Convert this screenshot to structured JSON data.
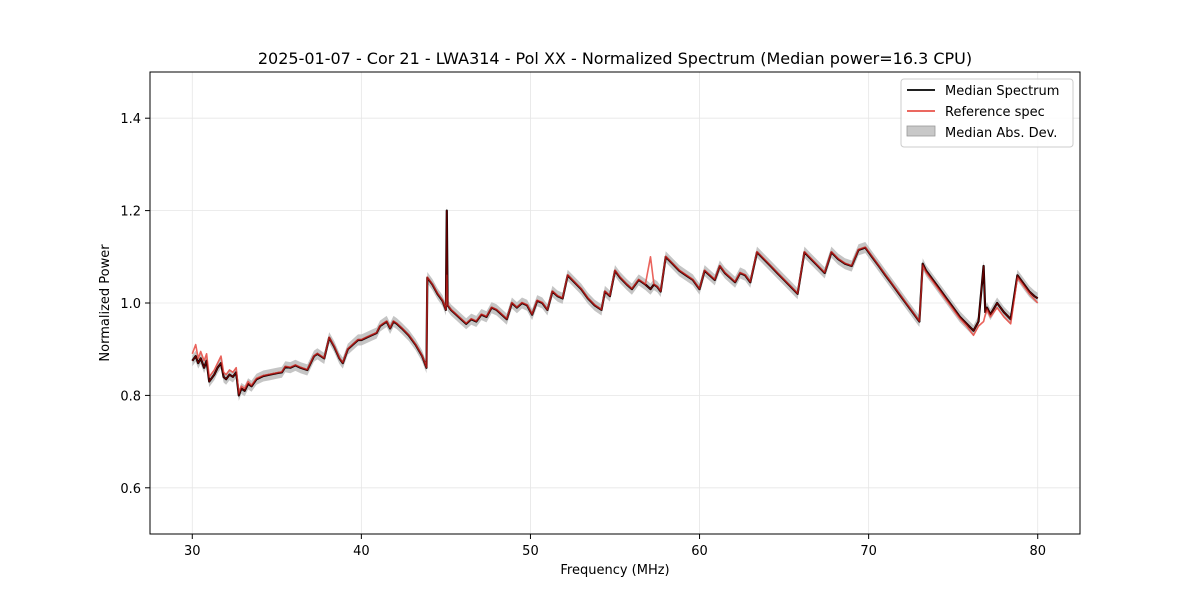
{
  "chart_data": {
    "type": "line",
    "title": "2025-01-07 - Cor 21 - LWA314 - Pol XX - Normalized Spectrum (Median power=16.3 CPU)",
    "xlabel": "Frequency (MHz)",
    "ylabel": "Normalized Power",
    "xlim": [
      27.5,
      82.5
    ],
    "ylim": [
      0.5,
      1.5
    ],
    "xticks": [
      30,
      40,
      50,
      60,
      70,
      80
    ],
    "xtick_labels": [
      "30",
      "40",
      "50",
      "60",
      "70",
      "80"
    ],
    "yticks": [
      0.6,
      0.8,
      1.0,
      1.2,
      1.4
    ],
    "ytick_labels": [
      "0.6",
      "0.8",
      "1.0",
      "1.2",
      "1.4"
    ],
    "grid": true,
    "legend_position": "top-right",
    "colors": {
      "median": "#000000",
      "reference": "#e8524a",
      "mad": "#bbbbbb",
      "overlap": "#8b0000"
    },
    "legend": [
      {
        "label": "Median Spectrum",
        "kind": "line",
        "color": "#000000"
      },
      {
        "label": "Reference spec",
        "kind": "line",
        "color": "#e8524a"
      },
      {
        "label": "Median Abs. Dev.",
        "kind": "patch",
        "color": "#bbbbbb"
      }
    ],
    "series": [
      {
        "name": "Median Spectrum",
        "x": [
          30.0,
          30.2,
          30.35,
          30.5,
          30.7,
          30.85,
          31.0,
          31.3,
          31.5,
          31.7,
          31.85,
          32.0,
          32.2,
          32.4,
          32.6,
          32.75,
          32.9,
          33.1,
          33.3,
          33.5,
          33.8,
          34.2,
          34.6,
          35.0,
          35.3,
          35.5,
          35.8,
          36.1,
          36.4,
          36.8,
          37.2,
          37.4,
          37.6,
          37.8,
          38.1,
          38.4,
          38.7,
          38.9,
          39.2,
          39.5,
          39.8,
          40.0,
          40.3,
          40.6,
          40.9,
          41.1,
          41.3,
          41.5,
          41.7,
          41.9,
          42.1,
          42.4,
          42.8,
          43.2,
          43.6,
          43.85,
          43.9,
          44.2,
          44.5,
          44.8,
          45.0,
          45.05,
          45.1,
          45.3,
          45.6,
          45.9,
          46.2,
          46.5,
          46.8,
          47.1,
          47.4,
          47.7,
          48.0,
          48.3,
          48.6,
          48.9,
          49.2,
          49.5,
          49.8,
          50.1,
          50.4,
          50.7,
          51.0,
          51.3,
          51.6,
          51.9,
          52.2,
          52.6,
          53.0,
          53.4,
          53.8,
          54.2,
          54.4,
          54.7,
          55.0,
          55.3,
          55.7,
          56.0,
          56.4,
          56.8,
          57.1,
          57.3,
          57.5,
          57.7,
          58.0,
          58.4,
          58.8,
          59.2,
          59.6,
          60.0,
          60.3,
          60.6,
          60.9,
          61.2,
          61.5,
          61.8,
          62.1,
          62.4,
          62.7,
          63.0,
          63.4,
          63.8,
          64.2,
          64.6,
          65.0,
          65.4,
          65.8,
          66.2,
          66.6,
          67.0,
          67.4,
          67.8,
          68.2,
          68.6,
          69.0,
          69.4,
          69.8,
          70.2,
          70.6,
          71.0,
          71.4,
          71.8,
          72.2,
          72.6,
          73.0,
          73.2,
          73.4,
          73.8,
          74.2,
          74.6,
          75.0,
          75.4,
          75.8,
          76.2,
          76.5,
          76.8,
          76.9,
          77.0,
          77.2,
          77.6,
          78.0,
          78.4,
          78.8,
          79.0,
          79.2,
          79.5,
          79.8,
          80.0
        ],
        "y": [
          0.875,
          0.885,
          0.87,
          0.88,
          0.86,
          0.875,
          0.83,
          0.845,
          0.86,
          0.87,
          0.84,
          0.835,
          0.845,
          0.84,
          0.85,
          0.8,
          0.815,
          0.81,
          0.825,
          0.82,
          0.835,
          0.842,
          0.845,
          0.848,
          0.85,
          0.862,
          0.86,
          0.865,
          0.86,
          0.855,
          0.885,
          0.89,
          0.885,
          0.88,
          0.925,
          0.905,
          0.88,
          0.87,
          0.9,
          0.91,
          0.92,
          0.92,
          0.925,
          0.93,
          0.935,
          0.95,
          0.955,
          0.96,
          0.945,
          0.96,
          0.955,
          0.945,
          0.93,
          0.91,
          0.885,
          0.86,
          1.055,
          1.04,
          1.02,
          1.005,
          0.985,
          1.2,
          0.995,
          0.985,
          0.975,
          0.965,
          0.955,
          0.965,
          0.96,
          0.975,
          0.97,
          0.99,
          0.985,
          0.975,
          0.965,
          1.0,
          0.99,
          1.0,
          0.995,
          0.975,
          1.005,
          1.0,
          0.985,
          1.025,
          1.015,
          1.01,
          1.06,
          1.045,
          1.03,
          1.01,
          0.995,
          0.985,
          1.025,
          1.015,
          1.07,
          1.055,
          1.04,
          1.03,
          1.05,
          1.04,
          1.03,
          1.04,
          1.035,
          1.025,
          1.1,
          1.085,
          1.07,
          1.06,
          1.05,
          1.03,
          1.07,
          1.06,
          1.05,
          1.08,
          1.065,
          1.055,
          1.045,
          1.065,
          1.06,
          1.045,
          1.11,
          1.095,
          1.08,
          1.065,
          1.05,
          1.035,
          1.02,
          1.11,
          1.095,
          1.08,
          1.065,
          1.11,
          1.095,
          1.085,
          1.08,
          1.115,
          1.12,
          1.1,
          1.08,
          1.06,
          1.04,
          1.02,
          1.0,
          0.98,
          0.96,
          1.085,
          1.07,
          1.05,
          1.03,
          1.01,
          0.99,
          0.97,
          0.955,
          0.94,
          0.96,
          1.08,
          0.98,
          0.99,
          0.975,
          1.0,
          0.98,
          0.965,
          1.06,
          1.05,
          1.04,
          1.025,
          1.015,
          1.01
        ]
      },
      {
        "name": "Reference spec",
        "x": [
          30.0,
          30.2,
          30.35,
          30.5,
          30.7,
          30.85,
          31.0,
          31.3,
          31.5,
          31.7,
          31.85,
          32.0,
          32.2,
          32.4,
          32.6,
          32.75,
          32.9,
          33.1,
          33.3,
          33.5,
          33.8,
          34.2,
          34.6,
          35.0,
          35.3,
          35.5,
          35.8,
          36.1,
          36.4,
          36.8,
          37.2,
          37.4,
          37.6,
          37.8,
          38.1,
          38.4,
          38.7,
          38.9,
          39.2,
          39.5,
          39.8,
          40.0,
          40.3,
          40.6,
          40.9,
          41.1,
          41.3,
          41.5,
          41.7,
          41.9,
          42.1,
          42.4,
          42.8,
          43.2,
          43.6,
          43.85,
          43.9,
          44.2,
          44.5,
          44.8,
          45.0,
          45.05,
          45.1,
          45.3,
          45.6,
          45.9,
          46.2,
          46.5,
          46.8,
          47.1,
          47.4,
          47.7,
          48.0,
          48.3,
          48.6,
          48.9,
          49.2,
          49.5,
          49.8,
          50.1,
          50.4,
          50.7,
          51.0,
          51.3,
          51.6,
          51.9,
          52.2,
          52.6,
          53.0,
          53.4,
          53.8,
          54.2,
          54.4,
          54.7,
          55.0,
          55.3,
          55.7,
          56.0,
          56.4,
          56.8,
          57.1,
          57.3,
          57.5,
          57.7,
          58.0,
          58.4,
          58.8,
          59.2,
          59.6,
          60.0,
          60.3,
          60.6,
          60.9,
          61.2,
          61.5,
          61.8,
          62.1,
          62.4,
          62.7,
          63.0,
          63.4,
          63.8,
          64.2,
          64.6,
          65.0,
          65.4,
          65.8,
          66.2,
          66.6,
          67.0,
          67.4,
          67.8,
          68.2,
          68.6,
          69.0,
          69.4,
          69.8,
          70.2,
          70.6,
          71.0,
          71.4,
          71.8,
          72.2,
          72.6,
          73.0,
          73.2,
          73.4,
          73.8,
          74.2,
          74.6,
          75.0,
          75.4,
          75.8,
          76.2,
          76.5,
          76.8,
          76.9,
          77.0,
          77.2,
          77.6,
          78.0,
          78.4,
          78.8,
          79.0,
          79.2,
          79.5,
          79.8,
          80.0
        ],
        "y": [
          0.89,
          0.91,
          0.88,
          0.895,
          0.875,
          0.89,
          0.84,
          0.855,
          0.87,
          0.885,
          0.85,
          0.845,
          0.855,
          0.85,
          0.86,
          0.805,
          0.82,
          0.815,
          0.83,
          0.822,
          0.837,
          0.843,
          0.846,
          0.849,
          0.851,
          0.863,
          0.861,
          0.866,
          0.861,
          0.856,
          0.886,
          0.891,
          0.886,
          0.881,
          0.926,
          0.906,
          0.881,
          0.871,
          0.901,
          0.911,
          0.921,
          0.921,
          0.926,
          0.931,
          0.936,
          0.951,
          0.956,
          0.961,
          0.946,
          0.961,
          0.956,
          0.946,
          0.931,
          0.911,
          0.886,
          0.861,
          1.056,
          1.041,
          1.021,
          1.006,
          0.986,
          1.06,
          0.996,
          0.986,
          0.976,
          0.966,
          0.956,
          0.966,
          0.961,
          0.976,
          0.971,
          0.991,
          0.986,
          0.976,
          0.966,
          1.001,
          0.991,
          1.001,
          0.996,
          0.976,
          1.006,
          1.001,
          0.986,
          1.026,
          1.016,
          1.011,
          1.061,
          1.046,
          1.031,
          1.011,
          0.996,
          0.986,
          1.026,
          1.016,
          1.071,
          1.056,
          1.041,
          1.031,
          1.051,
          1.041,
          1.1,
          1.041,
          1.036,
          1.026,
          1.101,
          1.086,
          1.071,
          1.061,
          1.051,
          1.031,
          1.071,
          1.061,
          1.051,
          1.081,
          1.066,
          1.056,
          1.046,
          1.066,
          1.061,
          1.046,
          1.111,
          1.096,
          1.081,
          1.066,
          1.051,
          1.036,
          1.021,
          1.111,
          1.096,
          1.081,
          1.066,
          1.111,
          1.096,
          1.086,
          1.081,
          1.116,
          1.121,
          1.101,
          1.081,
          1.061,
          1.041,
          1.021,
          1.001,
          0.981,
          0.961,
          1.081,
          1.066,
          1.046,
          1.026,
          1.006,
          0.986,
          0.966,
          0.95,
          0.93,
          0.95,
          0.96,
          0.975,
          0.985,
          0.97,
          0.99,
          0.97,
          0.955,
          1.055,
          1.045,
          1.035,
          1.02,
          1.008,
          1.0
        ]
      }
    ],
    "mad_halfwidth": 0.012
  }
}
